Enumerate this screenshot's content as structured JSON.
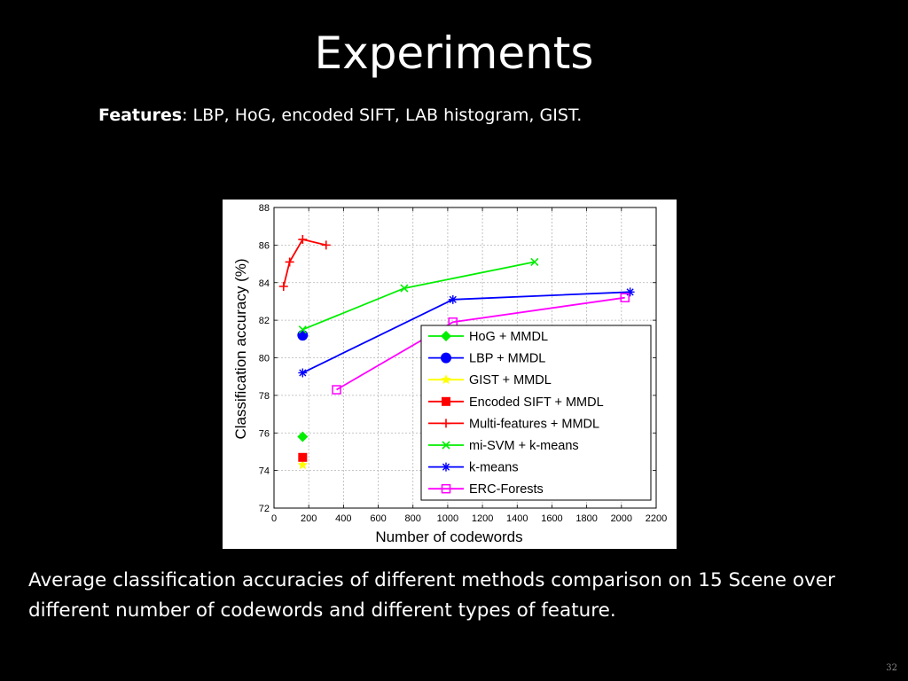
{
  "slide": {
    "title": "Experiments",
    "features_label": "Features",
    "features_text": ": LBP, HoG, encoded SIFT, LAB histogram, GIST.",
    "caption": "Average classification accuracies of different methods comparison on 15 Scene over different number of codewords and different types of feature.",
    "slide_number": "32"
  },
  "chart_data": {
    "type": "line",
    "xlabel": "Number of codewords",
    "ylabel": "Classification accuracy (%)",
    "xlim": [
      0,
      2200
    ],
    "ylim": [
      72,
      88
    ],
    "xticks": [
      0,
      200,
      400,
      600,
      800,
      1000,
      1200,
      1400,
      1600,
      1800,
      2000,
      2200
    ],
    "yticks": [
      72,
      74,
      76,
      78,
      80,
      82,
      84,
      86,
      88
    ],
    "grid": true,
    "legend_position": "bottom-right",
    "series": [
      {
        "name": "HoG + MMDL",
        "color": "#00ee00",
        "marker": "diamond",
        "x": [
          165
        ],
        "y": [
          75.8
        ]
      },
      {
        "name": "LBP + MMDL",
        "color": "#0000ff",
        "marker": "circle",
        "x": [
          165
        ],
        "y": [
          81.2
        ]
      },
      {
        "name": "GIST + MMDL",
        "color": "#ffff00",
        "marker": "star",
        "x": [
          165
        ],
        "y": [
          74.3
        ]
      },
      {
        "name": "Encoded SIFT + MMDL",
        "color": "#ff0000",
        "marker": "square",
        "x": [
          165
        ],
        "y": [
          74.7
        ]
      },
      {
        "name": "Multi-features + MMDL",
        "color": "#ff0000",
        "marker": "plus",
        "x": [
          55,
          90,
          165,
          300
        ],
        "y": [
          83.8,
          85.1,
          86.3,
          86.0
        ]
      },
      {
        "name": "mi-SVM + k-means",
        "color": "#00ee00",
        "marker": "x",
        "x": [
          165,
          750,
          1500
        ],
        "y": [
          81.5,
          83.7,
          85.1
        ]
      },
      {
        "name": "k-means",
        "color": "#0000ff",
        "marker": "asterisk",
        "x": [
          165,
          1030,
          2050
        ],
        "y": [
          79.2,
          83.1,
          83.5
        ]
      },
      {
        "name": "ERC-Forests",
        "color": "#ff00ff",
        "marker": "square-open",
        "x": [
          360,
          1030,
          2020
        ],
        "y": [
          78.3,
          81.9,
          83.2
        ]
      }
    ]
  }
}
